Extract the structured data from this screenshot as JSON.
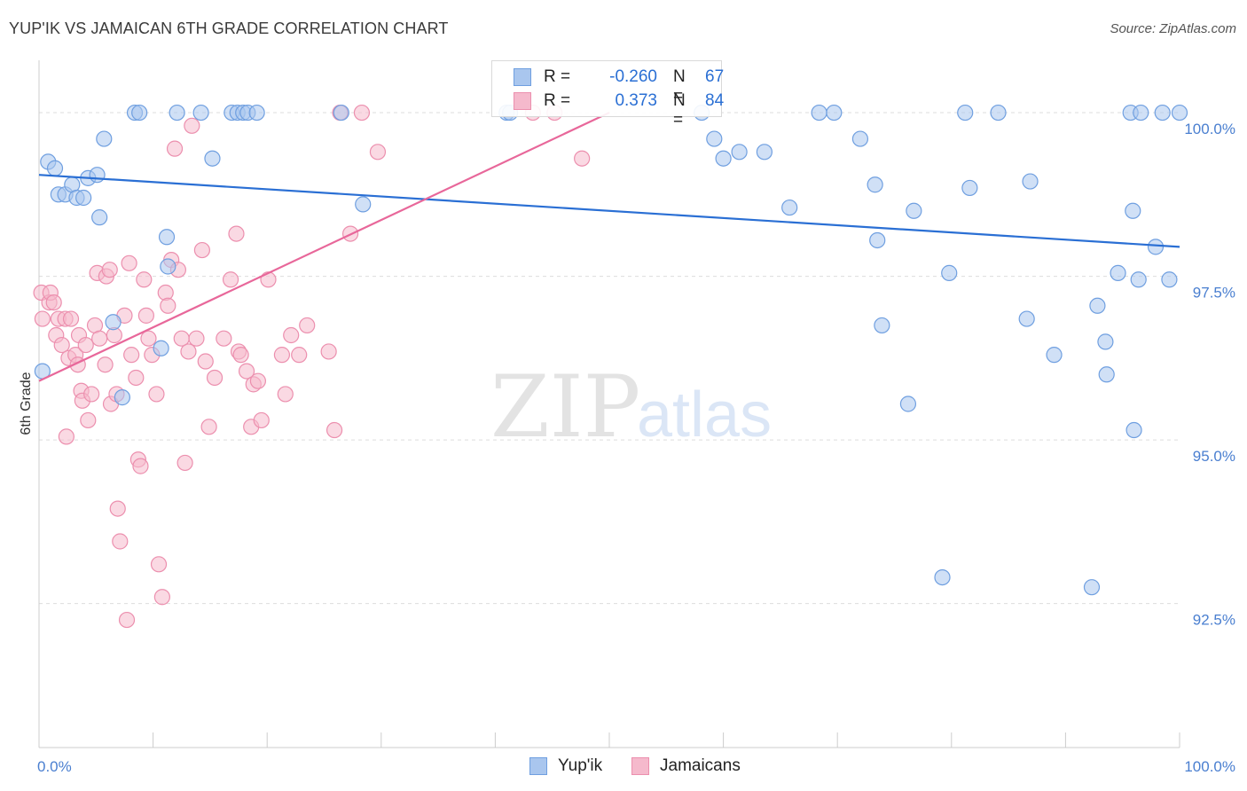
{
  "title": "YUP'IK VS JAMAICAN 6TH GRADE CORRELATION CHART",
  "source": "Source: ZipAtlas.com",
  "watermark": {
    "zip": "ZIP",
    "atlas": "atlas"
  },
  "legend": {
    "rows": [
      {
        "label": "R =",
        "r": "-0.260",
        "n_label": "N =",
        "n": "67"
      },
      {
        "label": "R =",
        "r": "0.373",
        "n_label": "N =",
        "n": "84"
      }
    ]
  },
  "bottom_legend": [
    "Yup'ik",
    "Jamaicans"
  ],
  "colors": {
    "blue_fill": "#a9c6ee",
    "blue_stroke": "#6f9fe0",
    "blue_line": "#2a6fd4",
    "pink_fill": "#f5b9cc",
    "pink_stroke": "#ec8fae",
    "pink_line": "#e8679a",
    "axis_text": "#4a7fd0",
    "grid": "#dddddd"
  },
  "chart_data": {
    "type": "scatter",
    "title": "YUP'IK VS JAMAICAN 6TH GRADE CORRELATION CHART",
    "xlabel": "",
    "ylabel": "6th Grade",
    "xlim": [
      0,
      100
    ],
    "ylim": [
      90.3,
      100.8
    ],
    "x_tick_labels": [
      "0.0%",
      "100.0%"
    ],
    "y_ticks": [
      92.5,
      95.0,
      97.5,
      100.0
    ],
    "y_tick_labels": [
      "92.5%",
      "95.0%",
      "97.5%",
      "100.0%"
    ],
    "series": [
      {
        "name": "Yup'ik",
        "r": -0.26,
        "n": 67,
        "trend": {
          "x": [
            0,
            100
          ],
          "y": [
            99.05,
            97.95
          ]
        },
        "points": [
          [
            0.3,
            96.05
          ],
          [
            0.8,
            99.25
          ],
          [
            1.4,
            99.15
          ],
          [
            1.7,
            98.75
          ],
          [
            2.3,
            98.75
          ],
          [
            2.9,
            98.9
          ],
          [
            3.3,
            98.7
          ],
          [
            3.9,
            98.7
          ],
          [
            4.3,
            99.0
          ],
          [
            5.1,
            99.05
          ],
          [
            5.3,
            98.4
          ],
          [
            5.7,
            99.6
          ],
          [
            6.5,
            96.8
          ],
          [
            7.3,
            95.65
          ],
          [
            8.4,
            100.0
          ],
          [
            8.8,
            100.0
          ],
          [
            11.3,
            97.65
          ],
          [
            11.2,
            98.1
          ],
          [
            10.7,
            96.4
          ],
          [
            12.1,
            100.0
          ],
          [
            14.2,
            100.0
          ],
          [
            15.2,
            99.3
          ],
          [
            16.9,
            100.0
          ],
          [
            17.4,
            100.0
          ],
          [
            17.9,
            100.0
          ],
          [
            18.3,
            100.0
          ],
          [
            19.1,
            100.0
          ],
          [
            26.5,
            100.0
          ],
          [
            28.4,
            98.6
          ],
          [
            41.0,
            100.0
          ],
          [
            41.3,
            100.0
          ],
          [
            58.1,
            100.0
          ],
          [
            59.2,
            99.6
          ],
          [
            60.0,
            99.3
          ],
          [
            61.4,
            99.4
          ],
          [
            63.6,
            99.4
          ],
          [
            65.8,
            98.55
          ],
          [
            68.4,
            100.0
          ],
          [
            69.7,
            100.0
          ],
          [
            72.0,
            99.6
          ],
          [
            73.3,
            98.9
          ],
          [
            73.5,
            98.05
          ],
          [
            73.9,
            96.75
          ],
          [
            76.2,
            95.55
          ],
          [
            76.7,
            98.5
          ],
          [
            79.2,
            92.9
          ],
          [
            79.8,
            97.55
          ],
          [
            81.2,
            100.0
          ],
          [
            81.6,
            98.85
          ],
          [
            84.1,
            100.0
          ],
          [
            86.6,
            96.85
          ],
          [
            86.9,
            98.95
          ],
          [
            89.0,
            96.3
          ],
          [
            92.3,
            92.75
          ],
          [
            92.8,
            97.05
          ],
          [
            93.5,
            96.5
          ],
          [
            93.6,
            96.0
          ],
          [
            94.6,
            97.55
          ],
          [
            95.7,
            100.0
          ],
          [
            95.9,
            98.5
          ],
          [
            96.0,
            95.15
          ],
          [
            96.4,
            97.45
          ],
          [
            96.6,
            100.0
          ],
          [
            97.9,
            97.95
          ],
          [
            98.5,
            100.0
          ],
          [
            99.1,
            97.45
          ],
          [
            100.0,
            100.0
          ]
        ]
      },
      {
        "name": "Jamaicans",
        "r": 0.373,
        "n": 84,
        "trend": {
          "x": [
            0,
            50
          ],
          "y": [
            95.9,
            100.0
          ]
        },
        "points": [
          [
            0.2,
            97.25
          ],
          [
            0.3,
            96.85
          ],
          [
            0.9,
            97.1
          ],
          [
            1.0,
            97.25
          ],
          [
            1.3,
            97.1
          ],
          [
            1.5,
            96.6
          ],
          [
            1.7,
            96.85
          ],
          [
            2.0,
            96.45
          ],
          [
            2.3,
            96.85
          ],
          [
            2.4,
            95.05
          ],
          [
            2.6,
            96.25
          ],
          [
            2.8,
            96.85
          ],
          [
            3.2,
            96.3
          ],
          [
            3.4,
            96.15
          ],
          [
            3.5,
            96.6
          ],
          [
            3.7,
            95.75
          ],
          [
            3.8,
            95.6
          ],
          [
            4.1,
            96.45
          ],
          [
            4.3,
            95.3
          ],
          [
            4.6,
            95.7
          ],
          [
            4.9,
            96.75
          ],
          [
            5.1,
            97.55
          ],
          [
            5.3,
            96.55
          ],
          [
            5.8,
            96.15
          ],
          [
            5.9,
            97.5
          ],
          [
            6.2,
            97.6
          ],
          [
            6.3,
            95.55
          ],
          [
            6.6,
            96.6
          ],
          [
            6.8,
            95.7
          ],
          [
            6.9,
            93.95
          ],
          [
            7.1,
            93.45
          ],
          [
            7.5,
            96.9
          ],
          [
            7.7,
            92.25
          ],
          [
            7.9,
            97.7
          ],
          [
            8.1,
            96.3
          ],
          [
            8.5,
            95.95
          ],
          [
            8.7,
            94.7
          ],
          [
            8.9,
            94.6
          ],
          [
            9.2,
            97.45
          ],
          [
            9.4,
            96.9
          ],
          [
            9.6,
            96.55
          ],
          [
            9.9,
            96.3
          ],
          [
            10.3,
            95.7
          ],
          [
            10.5,
            93.1
          ],
          [
            10.8,
            92.6
          ],
          [
            11.1,
            97.25
          ],
          [
            11.3,
            97.05
          ],
          [
            11.6,
            97.75
          ],
          [
            11.9,
            99.45
          ],
          [
            12.2,
            97.6
          ],
          [
            12.5,
            96.55
          ],
          [
            12.8,
            94.65
          ],
          [
            13.1,
            96.35
          ],
          [
            13.4,
            99.8
          ],
          [
            13.8,
            96.55
          ],
          [
            14.3,
            97.9
          ],
          [
            14.6,
            96.2
          ],
          [
            14.9,
            95.2
          ],
          [
            15.4,
            95.95
          ],
          [
            16.2,
            96.55
          ],
          [
            16.8,
            97.45
          ],
          [
            17.3,
            98.15
          ],
          [
            17.5,
            96.35
          ],
          [
            17.7,
            96.3
          ],
          [
            18.2,
            96.05
          ],
          [
            18.6,
            95.2
          ],
          [
            18.8,
            95.85
          ],
          [
            19.2,
            95.9
          ],
          [
            19.5,
            95.3
          ],
          [
            20.1,
            97.45
          ],
          [
            21.3,
            96.3
          ],
          [
            21.6,
            95.7
          ],
          [
            22.1,
            96.6
          ],
          [
            22.8,
            96.3
          ],
          [
            23.5,
            96.75
          ],
          [
            25.4,
            96.35
          ],
          [
            25.9,
            95.15
          ],
          [
            26.4,
            100.0
          ],
          [
            27.3,
            98.15
          ],
          [
            28.3,
            100.0
          ],
          [
            29.7,
            99.4
          ],
          [
            43.3,
            100.0
          ],
          [
            45.2,
            100.0
          ],
          [
            47.6,
            99.3
          ]
        ]
      }
    ]
  }
}
